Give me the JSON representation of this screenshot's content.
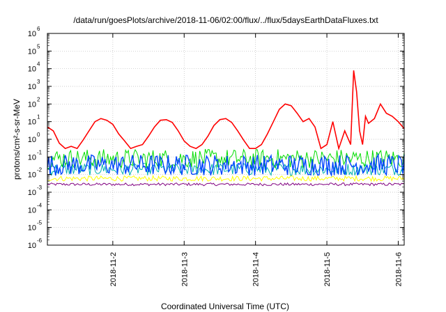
{
  "chart_data": {
    "type": "line",
    "title": "/data/run/goesPlots/archive/2018-11-06/02:00/flux/../flux/5daysEarthDataFluxes.txt",
    "xlabel": "Coordinated Universal Time (UTC)",
    "ylabel": "protons/cm²-s-sr-MeV",
    "yscale": "log",
    "ylim": [
      1e-06,
      1000000.0
    ],
    "xlim": [
      "2018-11-01T02:00",
      "2018-11-06T02:00"
    ],
    "yticks": [
      {
        "base": "10",
        "exp": "6"
      },
      {
        "base": "10",
        "exp": "5"
      },
      {
        "base": "10",
        "exp": "4"
      },
      {
        "base": "10",
        "exp": "3"
      },
      {
        "base": "10",
        "exp": "2"
      },
      {
        "base": "10",
        "exp": "1"
      },
      {
        "base": "10",
        "exp": "0"
      },
      {
        "base": "10",
        "exp": "-1"
      },
      {
        "base": "10",
        "exp": "-2"
      },
      {
        "base": "10",
        "exp": "-3"
      },
      {
        "base": "10",
        "exp": "-4"
      },
      {
        "base": "10",
        "exp": "-5"
      },
      {
        "base": "10",
        "exp": "-6"
      }
    ],
    "xticks": [
      "2018-11-2",
      "2018-11-3",
      "2018-11-4",
      "2018-11-5",
      "2018-11-6"
    ],
    "grid": true,
    "series": [
      {
        "color": "#ff0000",
        "x": [
          "2018-11-01T02:00",
          "2018-11-01T04:00",
          "2018-11-01T06:00",
          "2018-11-01T08:00",
          "2018-11-01T10:00",
          "2018-11-01T12:00",
          "2018-11-01T14:00",
          "2018-11-01T16:00",
          "2018-11-01T18:00",
          "2018-11-01T20:00",
          "2018-11-01T22:00",
          "2018-11-02T00:00",
          "2018-11-02T02:00",
          "2018-11-02T04:00",
          "2018-11-02T06:00",
          "2018-11-02T08:00",
          "2018-11-02T10:00",
          "2018-11-02T12:00",
          "2018-11-02T14:00",
          "2018-11-02T16:00",
          "2018-11-02T18:00",
          "2018-11-02T20:00",
          "2018-11-02T22:00",
          "2018-11-03T00:00",
          "2018-11-03T02:00",
          "2018-11-03T04:00",
          "2018-11-03T06:00",
          "2018-11-03T08:00",
          "2018-11-03T10:00",
          "2018-11-03T12:00",
          "2018-11-03T14:00",
          "2018-11-03T16:00",
          "2018-11-03T18:00",
          "2018-11-03T20:00",
          "2018-11-03T22:00",
          "2018-11-04T00:00",
          "2018-11-04T02:00",
          "2018-11-04T04:00",
          "2018-11-04T06:00",
          "2018-11-04T08:00",
          "2018-11-04T10:00",
          "2018-11-04T12:00",
          "2018-11-04T14:00",
          "2018-11-04T16:00",
          "2018-11-04T18:00",
          "2018-11-04T20:00",
          "2018-11-04T22:00",
          "2018-11-05T00:00",
          "2018-11-05T02:00",
          "2018-11-05T04:00",
          "2018-11-05T06:00",
          "2018-11-05T08:00",
          "2018-11-05T09:00",
          "2018-11-05T10:00",
          "2018-11-05T11:00",
          "2018-11-05T12:00",
          "2018-11-05T13:00",
          "2018-11-05T14:00",
          "2018-11-05T16:00",
          "2018-11-05T18:00",
          "2018-11-05T20:00",
          "2018-11-05T22:00",
          "2018-11-06T00:00",
          "2018-11-06T02:00"
        ],
        "y": [
          5,
          3,
          0.6,
          0.3,
          0.4,
          0.3,
          0.9,
          3,
          10,
          15,
          12,
          7,
          2,
          0.8,
          0.3,
          0.4,
          0.5,
          1.5,
          5,
          12,
          13,
          9,
          3,
          0.8,
          0.4,
          0.3,
          0.5,
          1.5,
          6,
          13,
          15,
          9,
          3,
          0.9,
          0.3,
          0.3,
          0.5,
          2,
          10,
          50,
          100,
          80,
          30,
          10,
          15,
          5,
          0.3,
          0.5,
          10,
          0.3,
          3,
          0.5,
          8000,
          500,
          3,
          0.5,
          20,
          8,
          15,
          100,
          30,
          20,
          10,
          4
        ]
      },
      {
        "color": "#00dd00",
        "x": [
          "2018-11-01T02:00",
          "2018-11-06T02:00"
        ],
        "y": [
          0.08,
          0.08
        ]
      },
      {
        "color": "#0044ff",
        "x": [
          "2018-11-01T02:00",
          "2018-11-06T02:00"
        ],
        "y": [
          0.035,
          0.035
        ]
      },
      {
        "color": "#00b0b0",
        "x": [
          "2018-11-01T02:00",
          "2018-11-06T02:00"
        ],
        "y": [
          0.02,
          0.02
        ]
      },
      {
        "color": "#ffff00",
        "x": [
          "2018-11-01T02:00",
          "2018-11-06T02:00"
        ],
        "y": [
          0.006,
          0.006
        ]
      },
      {
        "color": "#800080",
        "x": [
          "2018-11-01T02:00",
          "2018-11-06T02:00"
        ],
        "y": [
          0.0028,
          0.0028
        ]
      }
    ]
  }
}
